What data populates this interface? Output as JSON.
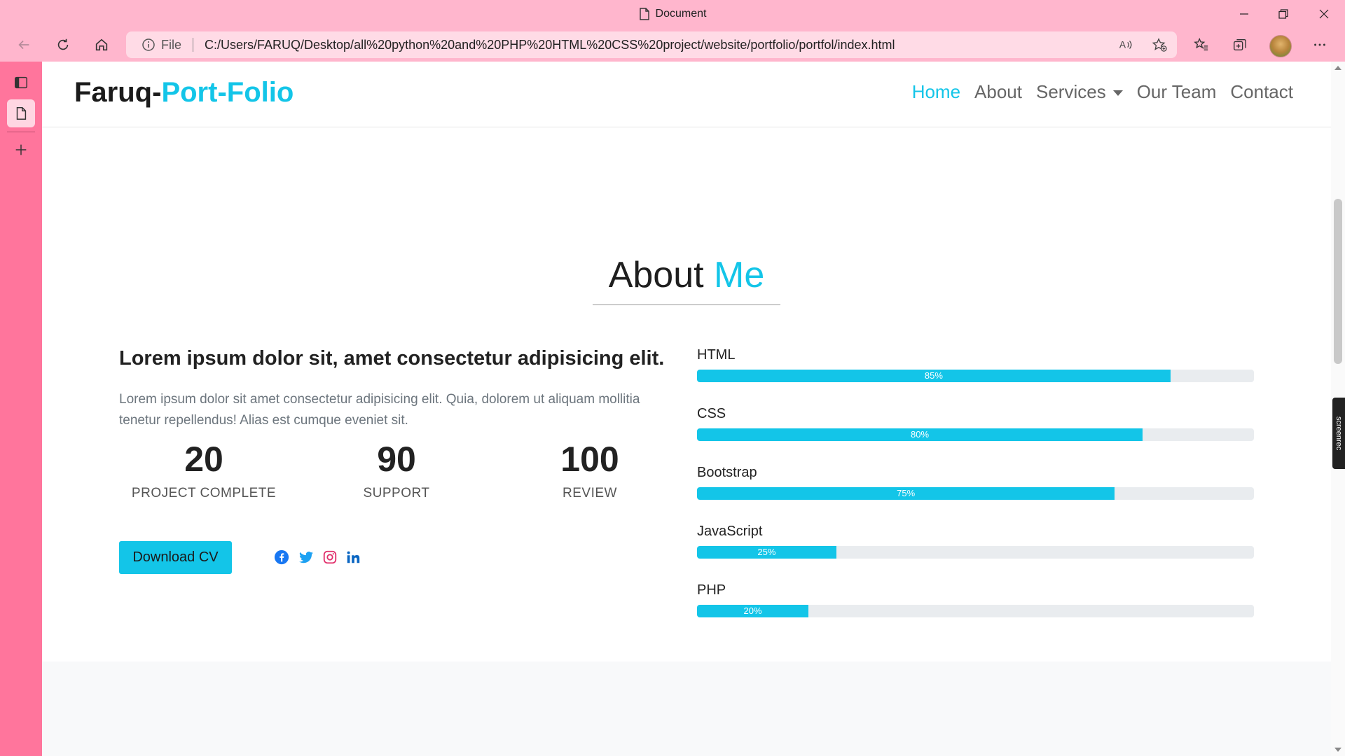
{
  "window": {
    "title": "Document"
  },
  "browser": {
    "address_prefix": "File",
    "url": "C:/Users/FARUQ/Desktop/all%20python%20and%20PHP%20HTML%20CSS%20project/website/portfolio/portfol/index.html"
  },
  "site": {
    "brand_main": "Faruq-",
    "brand_accent": "Port-Folio",
    "nav": [
      "Home",
      "About",
      "Services",
      "Our Team",
      "Contact"
    ],
    "nav_active": "Home"
  },
  "about": {
    "title_main": "About",
    "title_accent": "Me",
    "heading": "Lorem ipsum dolor sit, amet consectetur adipisicing elit.",
    "text": "Lorem ipsum dolor sit amet consectetur adipisicing elit. Quia, dolorem ut aliquam mollitia tenetur repellendus! Alias est cumque eveniet sit.",
    "stats": [
      {
        "value": "20",
        "label": "PROJECT COMPLETE"
      },
      {
        "value": "90",
        "label": "SUPPORT"
      },
      {
        "value": "100",
        "label": "REVIEW"
      }
    ],
    "download_label": "Download CV",
    "social_icons": [
      "facebook-icon",
      "twitter-icon",
      "instagram-icon",
      "linkedin-icon"
    ]
  },
  "skills": [
    {
      "name": "HTML",
      "percent": 85,
      "label": "85%"
    },
    {
      "name": "CSS",
      "percent": 80,
      "label": "80%"
    },
    {
      "name": "Bootstrap",
      "percent": 75,
      "label": "75%"
    },
    {
      "name": "JavaScript",
      "percent": 25,
      "label": "25%"
    },
    {
      "name": "PHP",
      "percent": 20,
      "label": "20%"
    }
  ],
  "colors": {
    "accent": "#13c5e8",
    "browser_chrome": "#ffb6cd",
    "sidebar": "#ff759c",
    "progress_track": "#e9ecef"
  }
}
